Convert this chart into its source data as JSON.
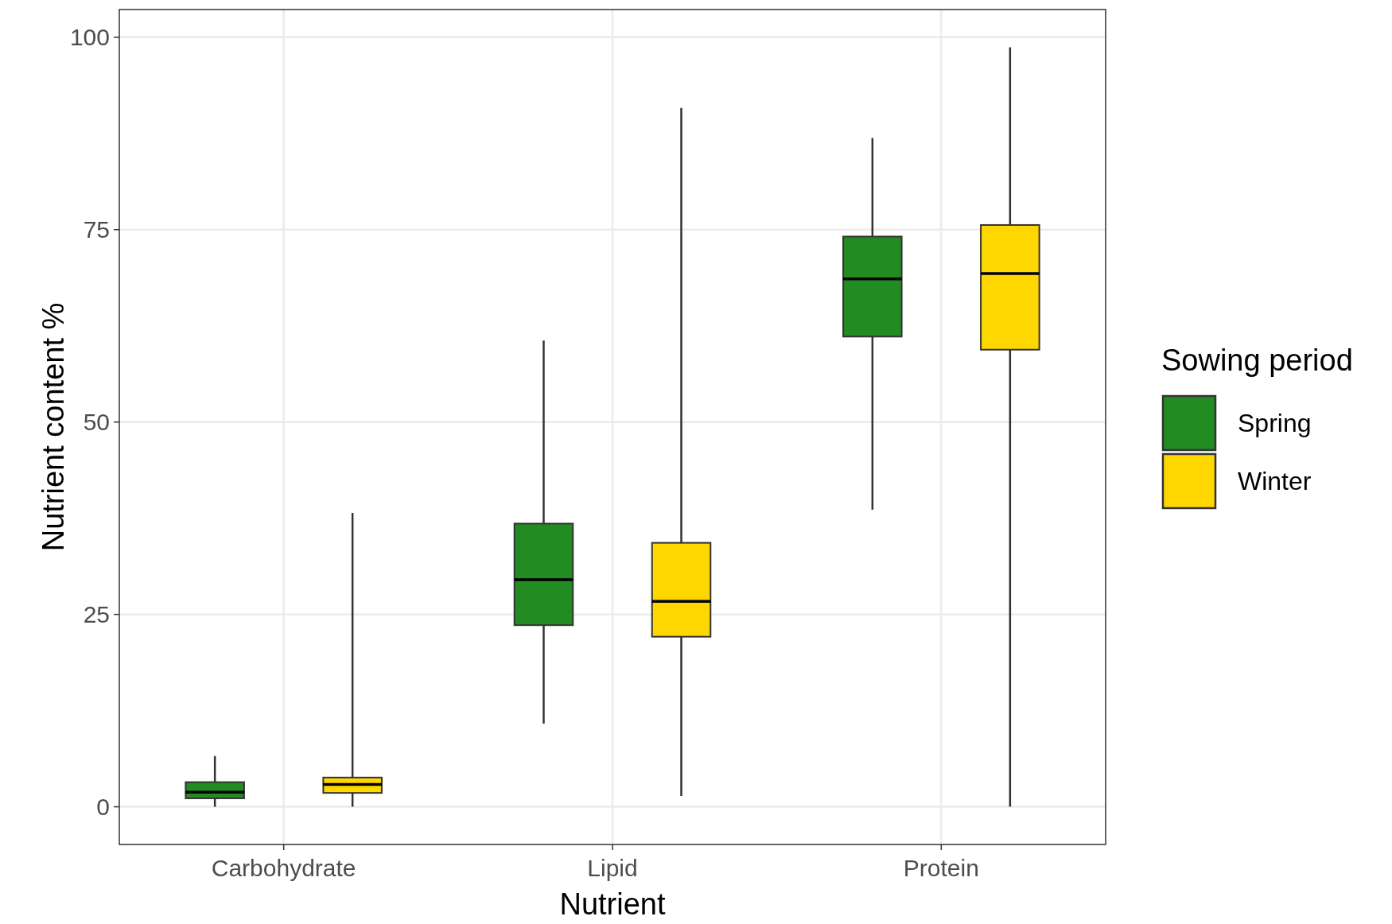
{
  "chart_data": {
    "type": "box",
    "xlabel": "Nutrient",
    "ylabel": "Nutrient content %",
    "legend_title": "Sowing period",
    "legend": "right",
    "grid": true,
    "categories": [
      "Carbohydrate",
      "Lipid",
      "Protein"
    ],
    "ylim": [
      -4.9,
      103.6
    ],
    "yticks": [
      0,
      25,
      50,
      75,
      100
    ],
    "series": [
      {
        "name": "Spring",
        "color": "#228b22",
        "boxes": [
          {
            "low": 0,
            "q1": 1.1,
            "median": 1.9,
            "q3": 3.2,
            "high": 6.6
          },
          {
            "low": 10.8,
            "q1": 23.6,
            "median": 29.5,
            "q3": 36.8,
            "high": 60.6
          },
          {
            "low": 38.6,
            "q1": 61.1,
            "median": 68.6,
            "q3": 74.1,
            "high": 86.9
          }
        ]
      },
      {
        "name": "Winter",
        "color": "#ffd700",
        "boxes": [
          {
            "low": 0,
            "q1": 1.8,
            "median": 2.9,
            "q3": 3.8,
            "high": 38.2
          },
          {
            "low": 1.4,
            "q1": 22.1,
            "median": 26.7,
            "q3": 34.3,
            "high": 90.8
          },
          {
            "low": 0,
            "q1": 59.4,
            "median": 69.3,
            "q3": 75.6,
            "high": 98.7
          }
        ]
      }
    ]
  }
}
